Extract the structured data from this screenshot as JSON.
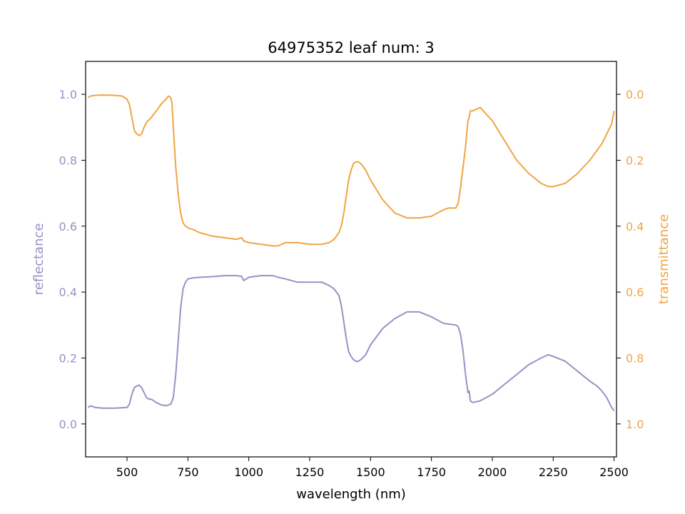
{
  "chart_data": {
    "type": "line",
    "title": "64975352 leaf num: 3",
    "xlabel": "wavelength (nm)",
    "xlim": [
      330,
      2510
    ],
    "xticks": [
      500,
      750,
      1000,
      1250,
      1500,
      1750,
      2000,
      2250,
      2500
    ],
    "grid": false,
    "axes": {
      "left": {
        "label": "reflectance",
        "color": "#9891c6",
        "lim": [
          -0.1,
          1.1
        ],
        "ticks": [
          0.0,
          0.2,
          0.4,
          0.6,
          0.8,
          1.0
        ],
        "tick_labels": [
          "0.0",
          "0.2",
          "0.4",
          "0.6",
          "0.8",
          "1.0"
        ]
      },
      "right": {
        "label": "transmittance",
        "color": "#f0a542",
        "lim": [
          1.1,
          -0.1
        ],
        "inverted": true,
        "ticks": [
          0.0,
          0.2,
          0.4,
          0.6,
          0.8,
          1.0
        ],
        "tick_labels": [
          "0.0",
          "0.2",
          "0.4",
          "0.6",
          "0.8",
          "1.0"
        ]
      }
    },
    "series": [
      {
        "axis": "left",
        "color": "#9891c6",
        "x": [
          340,
          350,
          370,
          400,
          450,
          500,
          510,
          520,
          530,
          540,
          550,
          560,
          570,
          580,
          590,
          600,
          620,
          640,
          660,
          680,
          690,
          700,
          710,
          720,
          730,
          740,
          750,
          770,
          800,
          850,
          900,
          950,
          970,
          980,
          1000,
          1050,
          1100,
          1120,
          1150,
          1200,
          1250,
          1300,
          1330,
          1350,
          1370,
          1380,
          1390,
          1400,
          1410,
          1420,
          1430,
          1440,
          1450,
          1460,
          1480,
          1500,
          1550,
          1600,
          1650,
          1700,
          1750,
          1800,
          1850,
          1860,
          1870,
          1880,
          1890,
          1900,
          1905,
          1910,
          1920,
          1950,
          2000,
          2050,
          2100,
          2150,
          2200,
          2230,
          2250,
          2300,
          2350,
          2400,
          2430,
          2450,
          2470,
          2490,
          2500
        ],
        "y": [
          0.05,
          0.055,
          0.05,
          0.048,
          0.048,
          0.05,
          0.06,
          0.09,
          0.11,
          0.115,
          0.118,
          0.11,
          0.095,
          0.08,
          0.075,
          0.075,
          0.065,
          0.058,
          0.055,
          0.06,
          0.08,
          0.15,
          0.25,
          0.35,
          0.41,
          0.43,
          0.44,
          0.443,
          0.445,
          0.447,
          0.45,
          0.45,
          0.448,
          0.435,
          0.445,
          0.45,
          0.45,
          0.445,
          0.44,
          0.43,
          0.43,
          0.43,
          0.42,
          0.41,
          0.39,
          0.36,
          0.31,
          0.26,
          0.22,
          0.205,
          0.195,
          0.19,
          0.19,
          0.195,
          0.21,
          0.24,
          0.29,
          0.32,
          0.34,
          0.34,
          0.325,
          0.305,
          0.3,
          0.295,
          0.27,
          0.22,
          0.15,
          0.095,
          0.1,
          0.07,
          0.065,
          0.07,
          0.09,
          0.12,
          0.15,
          0.18,
          0.2,
          0.21,
          0.205,
          0.19,
          0.16,
          0.13,
          0.115,
          0.1,
          0.08,
          0.05,
          0.04
        ]
      },
      {
        "axis": "right",
        "color": "#f0a542",
        "x": [
          340,
          350,
          370,
          400,
          450,
          480,
          500,
          510,
          520,
          530,
          540,
          550,
          560,
          570,
          580,
          600,
          620,
          640,
          660,
          670,
          680,
          685,
          690,
          700,
          710,
          720,
          730,
          740,
          750,
          760,
          770,
          800,
          850,
          900,
          950,
          970,
          980,
          1000,
          1050,
          1100,
          1120,
          1150,
          1200,
          1250,
          1300,
          1330,
          1350,
          1370,
          1380,
          1390,
          1400,
          1410,
          1420,
          1430,
          1440,
          1450,
          1460,
          1480,
          1500,
          1550,
          1600,
          1650,
          1700,
          1750,
          1800,
          1820,
          1840,
          1850,
          1860,
          1870,
          1880,
          1890,
          1900,
          1905,
          1910,
          1920,
          1950,
          2000,
          2050,
          2100,
          2150,
          2200,
          2230,
          2250,
          2300,
          2350,
          2400,
          2430,
          2450,
          2470,
          2490,
          2500
        ],
        "y": [
          0.01,
          0.005,
          0.003,
          0.002,
          0.003,
          0.005,
          0.015,
          0.03,
          0.07,
          0.11,
          0.12,
          0.125,
          0.12,
          0.1,
          0.085,
          0.07,
          0.05,
          0.03,
          0.015,
          0.005,
          0.01,
          0.03,
          0.1,
          0.22,
          0.3,
          0.36,
          0.39,
          0.4,
          0.405,
          0.408,
          0.41,
          0.42,
          0.43,
          0.435,
          0.44,
          0.435,
          0.445,
          0.45,
          0.455,
          0.46,
          0.46,
          0.45,
          0.45,
          0.455,
          0.455,
          0.45,
          0.44,
          0.42,
          0.4,
          0.36,
          0.31,
          0.26,
          0.23,
          0.21,
          0.205,
          0.205,
          0.21,
          0.23,
          0.26,
          0.32,
          0.36,
          0.375,
          0.375,
          0.37,
          0.35,
          0.345,
          0.345,
          0.345,
          0.33,
          0.28,
          0.22,
          0.16,
          0.08,
          0.07,
          0.05,
          0.05,
          0.04,
          0.08,
          0.14,
          0.2,
          0.24,
          0.27,
          0.28,
          0.28,
          0.27,
          0.24,
          0.2,
          0.17,
          0.15,
          0.12,
          0.09,
          0.05
        ]
      }
    ]
  }
}
